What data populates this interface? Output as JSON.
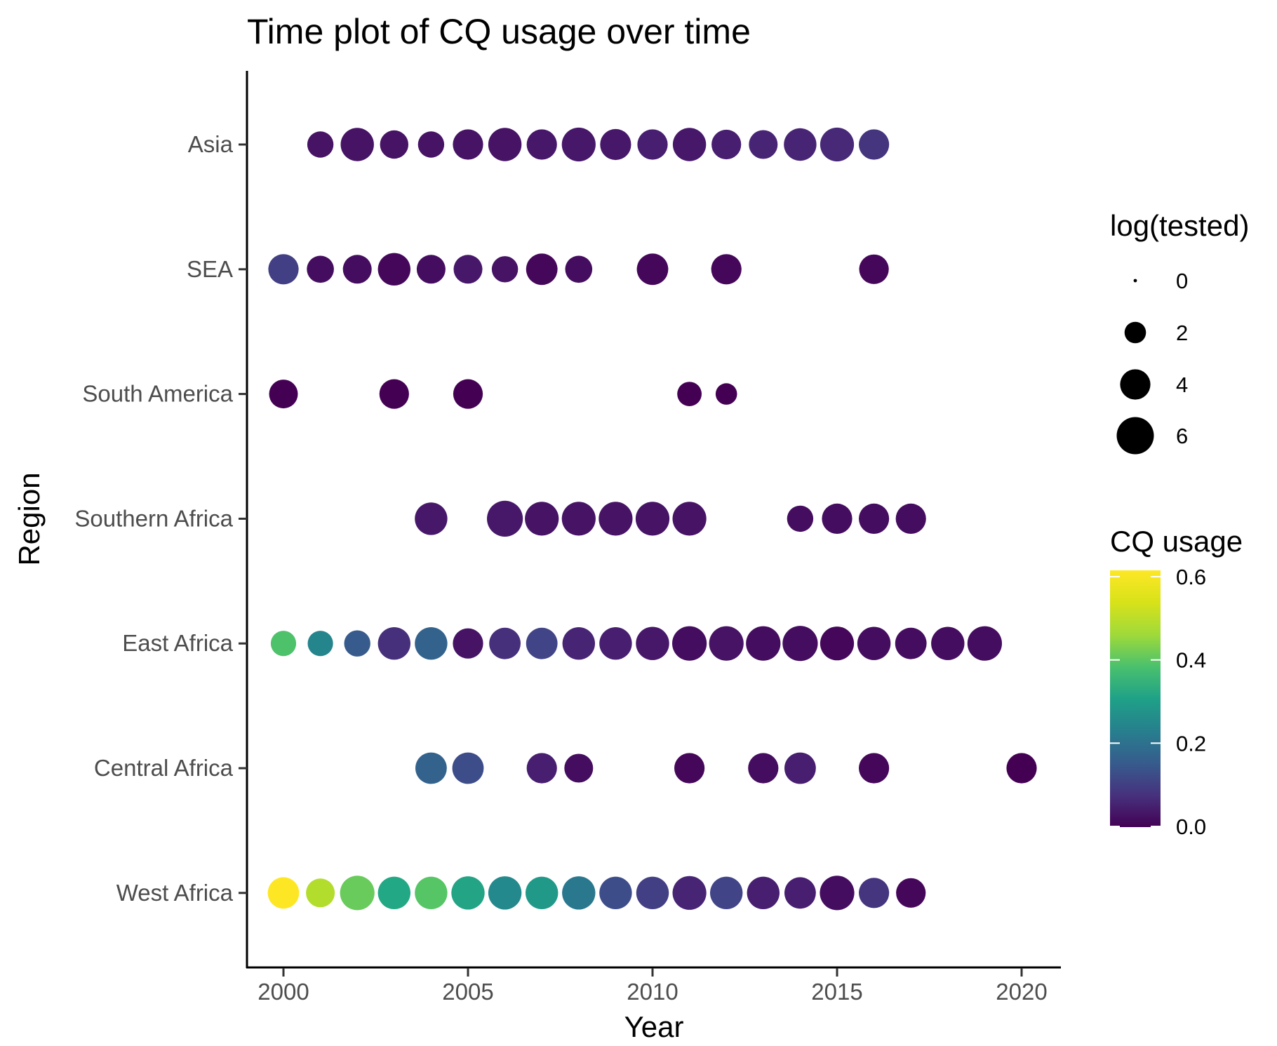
{
  "chart_data": {
    "type": "scatter",
    "title": "Time plot of CQ usage over time",
    "xlabel": "Year",
    "ylabel": "Region",
    "xlim": [
      1999,
      2021
    ],
    "x_ticks": [
      2000,
      2005,
      2010,
      2015,
      2020
    ],
    "categories": [
      "West Africa",
      "Central Africa",
      "East Africa",
      "Southern Africa",
      "South America",
      "SEA",
      "Asia"
    ],
    "grid": false,
    "size_legend": {
      "title": "log(tested)",
      "values": [
        0,
        2,
        4,
        6
      ],
      "labels": [
        "0",
        "2",
        "4",
        "6"
      ]
    },
    "color_legend": {
      "title": "CQ usage",
      "range": [
        0,
        0.6
      ],
      "ticks": [
        0.0,
        0.2,
        0.4,
        0.6
      ],
      "labels": [
        "0.0",
        "0.2",
        "0.4",
        "0.6"
      ],
      "colormap": "viridis"
    },
    "points": [
      {
        "region": "Asia",
        "year": 2001,
        "log_tested": 3.0,
        "cq_usage": 0.03
      },
      {
        "region": "Asia",
        "year": 2002,
        "log_tested": 4.8,
        "cq_usage": 0.03
      },
      {
        "region": "Asia",
        "year": 2003,
        "log_tested": 3.5,
        "cq_usage": 0.03
      },
      {
        "region": "Asia",
        "year": 2004,
        "log_tested": 3.0,
        "cq_usage": 0.03
      },
      {
        "region": "Asia",
        "year": 2005,
        "log_tested": 4.0,
        "cq_usage": 0.03
      },
      {
        "region": "Asia",
        "year": 2006,
        "log_tested": 4.8,
        "cq_usage": 0.03
      },
      {
        "region": "Asia",
        "year": 2007,
        "log_tested": 4.0,
        "cq_usage": 0.04
      },
      {
        "region": "Asia",
        "year": 2008,
        "log_tested": 5.0,
        "cq_usage": 0.04
      },
      {
        "region": "Asia",
        "year": 2009,
        "log_tested": 4.2,
        "cq_usage": 0.04
      },
      {
        "region": "Asia",
        "year": 2010,
        "log_tested": 4.0,
        "cq_usage": 0.05
      },
      {
        "region": "Asia",
        "year": 2011,
        "log_tested": 4.8,
        "cq_usage": 0.04
      },
      {
        "region": "Asia",
        "year": 2012,
        "log_tested": 3.8,
        "cq_usage": 0.05
      },
      {
        "region": "Asia",
        "year": 2013,
        "log_tested": 3.6,
        "cq_usage": 0.06
      },
      {
        "region": "Asia",
        "year": 2014,
        "log_tested": 4.6,
        "cq_usage": 0.06
      },
      {
        "region": "Asia",
        "year": 2015,
        "log_tested": 5.0,
        "cq_usage": 0.07
      },
      {
        "region": "Asia",
        "year": 2016,
        "log_tested": 4.0,
        "cq_usage": 0.09
      },
      {
        "region": "SEA",
        "year": 2000,
        "log_tested": 4.0,
        "cq_usage": 0.11
      },
      {
        "region": "SEA",
        "year": 2001,
        "log_tested": 3.2,
        "cq_usage": 0.02
      },
      {
        "region": "SEA",
        "year": 2002,
        "log_tested": 3.6,
        "cq_usage": 0.02
      },
      {
        "region": "SEA",
        "year": 2003,
        "log_tested": 4.6,
        "cq_usage": 0.01
      },
      {
        "region": "SEA",
        "year": 2004,
        "log_tested": 3.6,
        "cq_usage": 0.02
      },
      {
        "region": "SEA",
        "year": 2005,
        "log_tested": 3.6,
        "cq_usage": 0.04
      },
      {
        "region": "SEA",
        "year": 2006,
        "log_tested": 3.0,
        "cq_usage": 0.03
      },
      {
        "region": "SEA",
        "year": 2007,
        "log_tested": 4.3,
        "cq_usage": 0.01
      },
      {
        "region": "SEA",
        "year": 2008,
        "log_tested": 3.2,
        "cq_usage": 0.02
      },
      {
        "region": "SEA",
        "year": 2010,
        "log_tested": 4.3,
        "cq_usage": 0.01
      },
      {
        "region": "SEA",
        "year": 2012,
        "log_tested": 4.0,
        "cq_usage": 0.01
      },
      {
        "region": "SEA",
        "year": 2016,
        "log_tested": 3.8,
        "cq_usage": 0.01
      },
      {
        "region": "South America",
        "year": 2000,
        "log_tested": 3.6,
        "cq_usage": 0.0
      },
      {
        "region": "South America",
        "year": 2003,
        "log_tested": 3.8,
        "cq_usage": 0.0
      },
      {
        "region": "South America",
        "year": 2005,
        "log_tested": 3.8,
        "cq_usage": 0.0
      },
      {
        "region": "South America",
        "year": 2011,
        "log_tested": 2.6,
        "cq_usage": 0.0
      },
      {
        "region": "South America",
        "year": 2012,
        "log_tested": 2.0,
        "cq_usage": 0.0
      },
      {
        "region": "Southern Africa",
        "year": 2004,
        "log_tested": 4.6,
        "cq_usage": 0.04
      },
      {
        "region": "Southern Africa",
        "year": 2006,
        "log_tested": 5.6,
        "cq_usage": 0.04
      },
      {
        "region": "Southern Africa",
        "year": 2007,
        "log_tested": 5.0,
        "cq_usage": 0.03
      },
      {
        "region": "Southern Africa",
        "year": 2008,
        "log_tested": 5.0,
        "cq_usage": 0.03
      },
      {
        "region": "Southern Africa",
        "year": 2009,
        "log_tested": 5.0,
        "cq_usage": 0.03
      },
      {
        "region": "Southern Africa",
        "year": 2010,
        "log_tested": 5.0,
        "cq_usage": 0.03
      },
      {
        "region": "Southern Africa",
        "year": 2011,
        "log_tested": 5.0,
        "cq_usage": 0.03
      },
      {
        "region": "Southern Africa",
        "year": 2014,
        "log_tested": 3.0,
        "cq_usage": 0.02
      },
      {
        "region": "Southern Africa",
        "year": 2015,
        "log_tested": 4.0,
        "cq_usage": 0.02
      },
      {
        "region": "Southern Africa",
        "year": 2016,
        "log_tested": 4.0,
        "cq_usage": 0.02
      },
      {
        "region": "Southern Africa",
        "year": 2017,
        "log_tested": 4.0,
        "cq_usage": 0.02
      },
      {
        "region": "East Africa",
        "year": 2000,
        "log_tested": 2.8,
        "cq_usage": 0.43
      },
      {
        "region": "East Africa",
        "year": 2001,
        "log_tested": 2.8,
        "cq_usage": 0.27
      },
      {
        "region": "East Africa",
        "year": 2002,
        "log_tested": 3.0,
        "cq_usage": 0.17
      },
      {
        "region": "East Africa",
        "year": 2003,
        "log_tested": 4.6,
        "cq_usage": 0.08
      },
      {
        "region": "East Africa",
        "year": 2004,
        "log_tested": 4.6,
        "cq_usage": 0.19
      },
      {
        "region": "East Africa",
        "year": 2005,
        "log_tested": 4.0,
        "cq_usage": 0.03
      },
      {
        "region": "East Africa",
        "year": 2006,
        "log_tested": 4.3,
        "cq_usage": 0.08
      },
      {
        "region": "East Africa",
        "year": 2007,
        "log_tested": 4.3,
        "cq_usage": 0.12
      },
      {
        "region": "East Africa",
        "year": 2008,
        "log_tested": 4.6,
        "cq_usage": 0.06
      },
      {
        "region": "East Africa",
        "year": 2009,
        "log_tested": 4.6,
        "cq_usage": 0.05
      },
      {
        "region": "East Africa",
        "year": 2010,
        "log_tested": 4.8,
        "cq_usage": 0.04
      },
      {
        "region": "East Africa",
        "year": 2011,
        "log_tested": 5.2,
        "cq_usage": 0.02
      },
      {
        "region": "East Africa",
        "year": 2012,
        "log_tested": 5.2,
        "cq_usage": 0.03
      },
      {
        "region": "East Africa",
        "year": 2013,
        "log_tested": 5.2,
        "cq_usage": 0.02
      },
      {
        "region": "East Africa",
        "year": 2014,
        "log_tested": 5.4,
        "cq_usage": 0.02
      },
      {
        "region": "East Africa",
        "year": 2015,
        "log_tested": 5.0,
        "cq_usage": 0.01
      },
      {
        "region": "East Africa",
        "year": 2016,
        "log_tested": 4.8,
        "cq_usage": 0.02
      },
      {
        "region": "East Africa",
        "year": 2017,
        "log_tested": 4.3,
        "cq_usage": 0.02
      },
      {
        "region": "East Africa",
        "year": 2018,
        "log_tested": 4.8,
        "cq_usage": 0.02
      },
      {
        "region": "East Africa",
        "year": 2019,
        "log_tested": 5.2,
        "cq_usage": 0.02
      },
      {
        "region": "Central Africa",
        "year": 2004,
        "log_tested": 4.3,
        "cq_usage": 0.19
      },
      {
        "region": "Central Africa",
        "year": 2005,
        "log_tested": 4.3,
        "cq_usage": 0.14
      },
      {
        "region": "Central Africa",
        "year": 2007,
        "log_tested": 4.0,
        "cq_usage": 0.05
      },
      {
        "region": "Central Africa",
        "year": 2008,
        "log_tested": 3.6,
        "cq_usage": 0.02
      },
      {
        "region": "Central Africa",
        "year": 2011,
        "log_tested": 4.0,
        "cq_usage": 0.01
      },
      {
        "region": "Central Africa",
        "year": 2013,
        "log_tested": 4.0,
        "cq_usage": 0.02
      },
      {
        "region": "Central Africa",
        "year": 2014,
        "log_tested": 4.3,
        "cq_usage": 0.05
      },
      {
        "region": "Central Africa",
        "year": 2016,
        "log_tested": 4.0,
        "cq_usage": 0.01
      },
      {
        "region": "Central Africa",
        "year": 2020,
        "log_tested": 4.0,
        "cq_usage": 0.0
      },
      {
        "region": "West Africa",
        "year": 2000,
        "log_tested": 4.3,
        "cq_usage": 0.6
      },
      {
        "region": "West Africa",
        "year": 2001,
        "log_tested": 3.6,
        "cq_usage": 0.53
      },
      {
        "region": "West Africa",
        "year": 2002,
        "log_tested": 5.2,
        "cq_usage": 0.46
      },
      {
        "region": "West Africa",
        "year": 2003,
        "log_tested": 4.6,
        "cq_usage": 0.36
      },
      {
        "region": "West Africa",
        "year": 2004,
        "log_tested": 4.6,
        "cq_usage": 0.44
      },
      {
        "region": "West Africa",
        "year": 2005,
        "log_tested": 4.8,
        "cq_usage": 0.35
      },
      {
        "region": "West Africa",
        "year": 2006,
        "log_tested": 4.8,
        "cq_usage": 0.28
      },
      {
        "region": "West Africa",
        "year": 2007,
        "log_tested": 4.6,
        "cq_usage": 0.32
      },
      {
        "region": "West Africa",
        "year": 2008,
        "log_tested": 4.8,
        "cq_usage": 0.24
      },
      {
        "region": "West Africa",
        "year": 2009,
        "log_tested": 4.6,
        "cq_usage": 0.14
      },
      {
        "region": "West Africa",
        "year": 2010,
        "log_tested": 4.6,
        "cq_usage": 0.11
      },
      {
        "region": "West Africa",
        "year": 2011,
        "log_tested": 5.0,
        "cq_usage": 0.06
      },
      {
        "region": "West Africa",
        "year": 2012,
        "log_tested": 4.6,
        "cq_usage": 0.12
      },
      {
        "region": "West Africa",
        "year": 2013,
        "log_tested": 4.6,
        "cq_usage": 0.05
      },
      {
        "region": "West Africa",
        "year": 2014,
        "log_tested": 4.3,
        "cq_usage": 0.05
      },
      {
        "region": "West Africa",
        "year": 2015,
        "log_tested": 5.2,
        "cq_usage": 0.02
      },
      {
        "region": "West Africa",
        "year": 2016,
        "log_tested": 4.0,
        "cq_usage": 0.09
      },
      {
        "region": "West Africa",
        "year": 2017,
        "log_tested": 3.8,
        "cq_usage": 0.01
      }
    ]
  }
}
